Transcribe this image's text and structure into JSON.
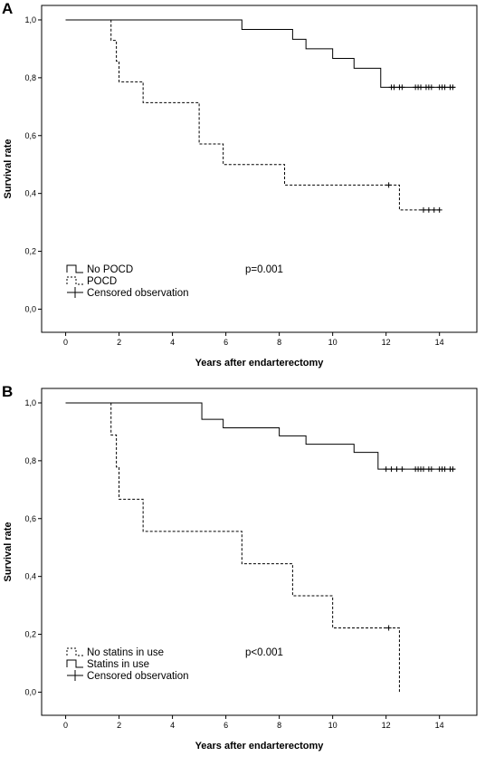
{
  "chart_data": [
    {
      "panel_label": "A",
      "type": "line",
      "subtype": "kaplan-meier",
      "xlabel": "Years after endarterectomy",
      "ylabel": "Survival rate",
      "xticks": [
        0,
        2,
        4,
        6,
        8,
        10,
        12,
        14
      ],
      "xtick_labels": [
        "0",
        "2",
        "4",
        "6",
        "8",
        "10",
        "12",
        "14"
      ],
      "yticks": [
        0.0,
        0.2,
        0.4,
        0.6,
        0.8,
        1.0
      ],
      "ytick_labels": [
        "0,0",
        "0,2",
        "0,4",
        "0,6",
        "0,8",
        "1,0"
      ],
      "xlim": [
        -0.9,
        15.4
      ],
      "ylim": [
        -0.08,
        1.05
      ],
      "grid": false,
      "legend_position": "bottom-left",
      "annotation": "p=0.001",
      "series": [
        {
          "name": "No POCD",
          "style": "solid",
          "steps": [
            [
              0,
              1.0
            ],
            [
              6.6,
              0.967
            ],
            [
              8.5,
              0.933
            ],
            [
              9.0,
              0.9
            ],
            [
              10.0,
              0.867
            ],
            [
              10.8,
              0.833
            ],
            [
              11.8,
              0.767
            ]
          ],
          "end_x": 14.6,
          "censored": [
            12.2,
            12.3,
            12.5,
            12.6,
            13.1,
            13.2,
            13.3,
            13.5,
            13.6,
            13.7,
            14.0,
            14.1,
            14.2,
            14.4,
            14.5
          ]
        },
        {
          "name": "POCD",
          "style": "dashed",
          "steps": [
            [
              0,
              1.0
            ],
            [
              1.7,
              0.929
            ],
            [
              1.9,
              0.857
            ],
            [
              2.0,
              0.786
            ],
            [
              2.9,
              0.714
            ],
            [
              5.0,
              0.571
            ],
            [
              5.9,
              0.5
            ],
            [
              8.2,
              0.429
            ],
            [
              12.5,
              0.343
            ]
          ],
          "end_x": 14.0,
          "censored": [
            12.1,
            13.4,
            13.6,
            13.8,
            14.0
          ]
        }
      ],
      "legend": [
        {
          "label": "No POCD",
          "kind": "solid"
        },
        {
          "label": "POCD",
          "kind": "dashed"
        },
        {
          "label": "Censored observation",
          "kind": "plus"
        }
      ]
    },
    {
      "panel_label": "B",
      "type": "line",
      "subtype": "kaplan-meier",
      "xlabel": "Years after endarterectomy",
      "ylabel": "Survival rate",
      "xticks": [
        0,
        2,
        4,
        6,
        8,
        10,
        12,
        14
      ],
      "xtick_labels": [
        "0",
        "2",
        "4",
        "6",
        "8",
        "10",
        "12",
        "14"
      ],
      "yticks": [
        0.0,
        0.2,
        0.4,
        0.6,
        0.8,
        1.0
      ],
      "ytick_labels": [
        "0,0",
        "0,2",
        "0,4",
        "0,6",
        "0,8",
        "1,0"
      ],
      "xlim": [
        -0.9,
        15.4
      ],
      "ylim": [
        -0.08,
        1.05
      ],
      "grid": false,
      "legend_position": "bottom-left",
      "annotation": "p<0.001",
      "series": [
        {
          "name": "No statins in use",
          "style": "dashed",
          "steps": [
            [
              0,
              1.0
            ],
            [
              1.7,
              0.889
            ],
            [
              1.9,
              0.778
            ],
            [
              2.0,
              0.667
            ],
            [
              2.9,
              0.556
            ],
            [
              6.6,
              0.444
            ],
            [
              8.5,
              0.333
            ],
            [
              10.0,
              0.222
            ],
            [
              12.5,
              0.0
            ]
          ],
          "end_x": 12.5,
          "censored": [
            12.1
          ]
        },
        {
          "name": "Statins in use",
          "style": "solid",
          "steps": [
            [
              0,
              1.0
            ],
            [
              5.1,
              0.943
            ],
            [
              5.9,
              0.914
            ],
            [
              8.0,
              0.886
            ],
            [
              9.0,
              0.857
            ],
            [
              10.8,
              0.829
            ],
            [
              11.7,
              0.771
            ]
          ],
          "end_x": 14.6,
          "censored": [
            12.0,
            12.2,
            12.4,
            12.6,
            13.1,
            13.2,
            13.3,
            13.4,
            13.6,
            13.7,
            14.0,
            14.1,
            14.2,
            14.4,
            14.5
          ]
        }
      ],
      "legend": [
        {
          "label": "No statins in use",
          "kind": "dashed"
        },
        {
          "label": "Statins in use",
          "kind": "solid"
        },
        {
          "label": "Censored observation",
          "kind": "plus"
        }
      ]
    }
  ]
}
